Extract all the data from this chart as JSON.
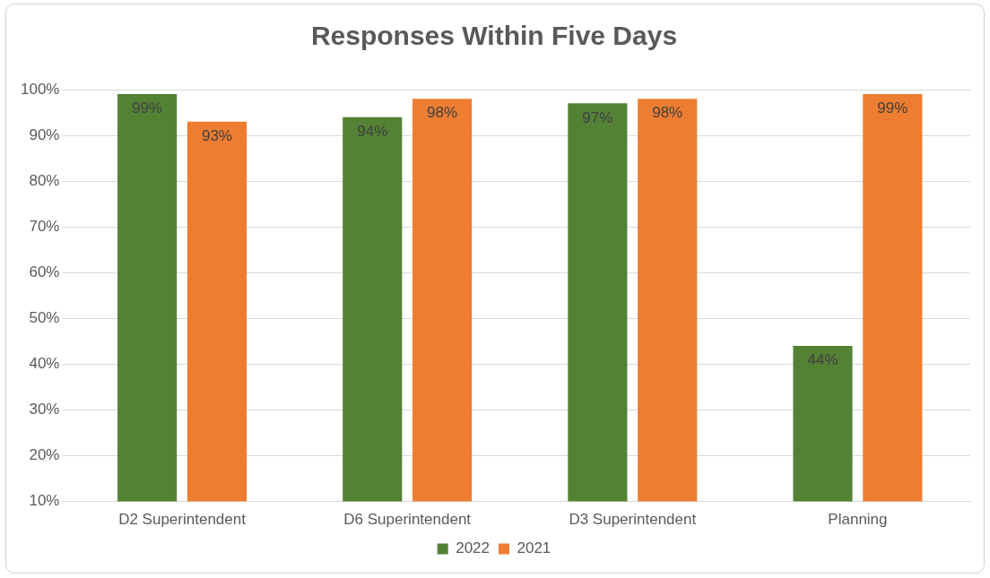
{
  "chart_data": {
    "type": "bar",
    "title": "Responses Within Five Days",
    "categories": [
      "D2 Superintendent",
      "D6 Superintendent",
      "D3 Superintendent",
      "Planning"
    ],
    "series": [
      {
        "name": "2022",
        "color": "#548235",
        "values": [
          99,
          94,
          97,
          44
        ],
        "value_labels": [
          "99%",
          "94%",
          "97%",
          "44%"
        ]
      },
      {
        "name": "2021",
        "color": "#ed7d31",
        "values": [
          93,
          98,
          98,
          99
        ],
        "value_labels": [
          "93%",
          "98%",
          "98%",
          "99%"
        ]
      }
    ],
    "ylim": [
      10,
      100
    ],
    "yticks": [
      {
        "value": 10,
        "label": "10%"
      },
      {
        "value": 20,
        "label": "20%"
      },
      {
        "value": 30,
        "label": "30%"
      },
      {
        "value": 40,
        "label": "40%"
      },
      {
        "value": 50,
        "label": "50%"
      },
      {
        "value": 60,
        "label": "60%"
      },
      {
        "value": 70,
        "label": "70%"
      },
      {
        "value": 80,
        "label": "80%"
      },
      {
        "value": 90,
        "label": "90%"
      },
      {
        "value": 100,
        "label": "100%"
      }
    ],
    "grid": "y",
    "legend": "bottom"
  }
}
